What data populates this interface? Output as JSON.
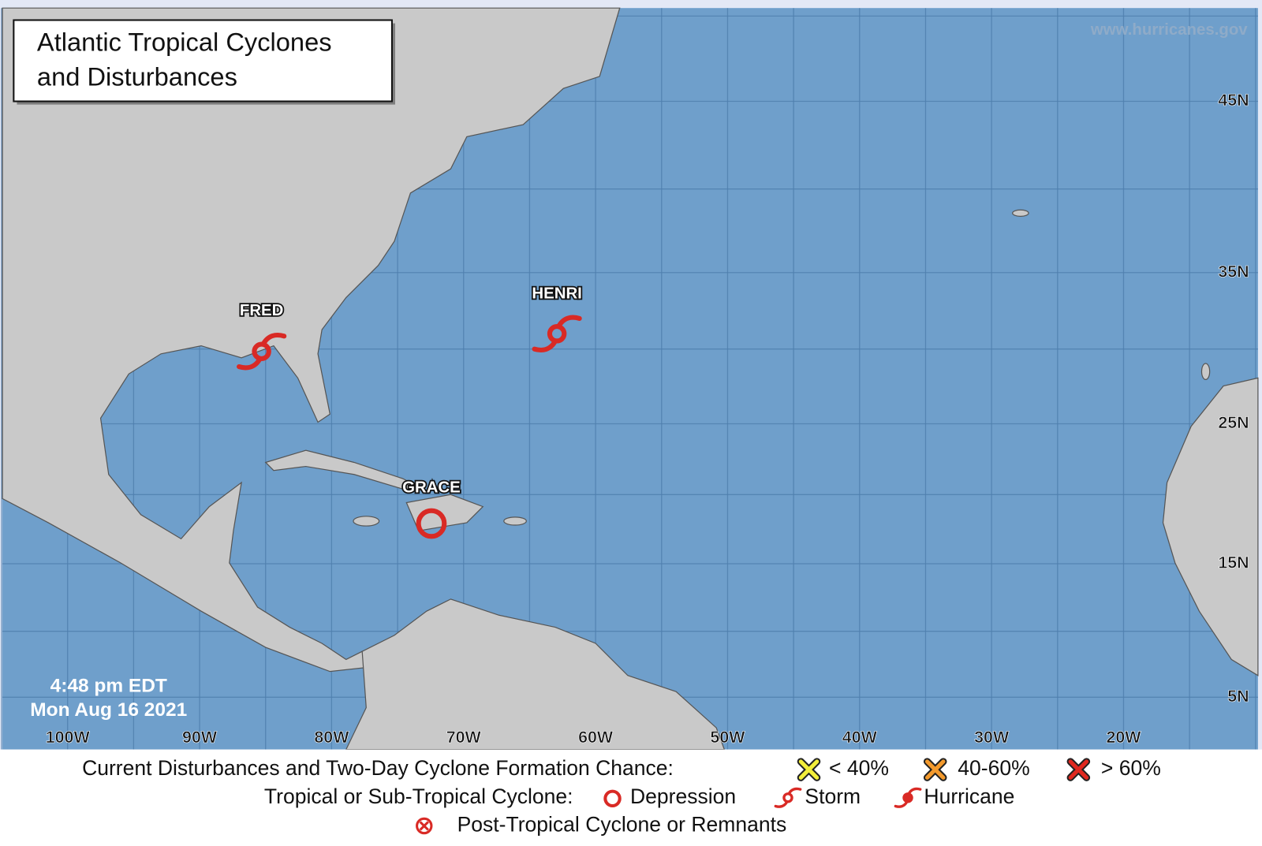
{
  "title": [
    "Atlantic Tropical Cyclones",
    "and Disturbances"
  ],
  "watermark": "www.hurricanes.gov",
  "timestamp": [
    "4:48 pm EDT",
    "Mon Aug 16 2021"
  ],
  "longitude_labels": [
    "100W",
    "90W",
    "80W",
    "70W",
    "60W",
    "50W",
    "40W",
    "30W",
    "20W"
  ],
  "latitude_labels": [
    "45N",
    "35N",
    "25N",
    "15N",
    "5N"
  ],
  "storms": [
    "FRED",
    "HENRI",
    "GRACE"
  ],
  "legend": {
    "disturbances": {
      "heading": "Current Disturbances and Two-Day Cyclone Formation Chance:",
      "low": "< 40%",
      "medium": "40-60%",
      "high": "> 60%"
    },
    "cyclones": {
      "heading": "Tropical or Sub-Tropical Cyclone:",
      "depression": "Depression",
      "storm": "Storm",
      "hurricane": "Hurricane"
    },
    "post_tropical": "Post-Tropical Cyclone or Remnants"
  }
}
